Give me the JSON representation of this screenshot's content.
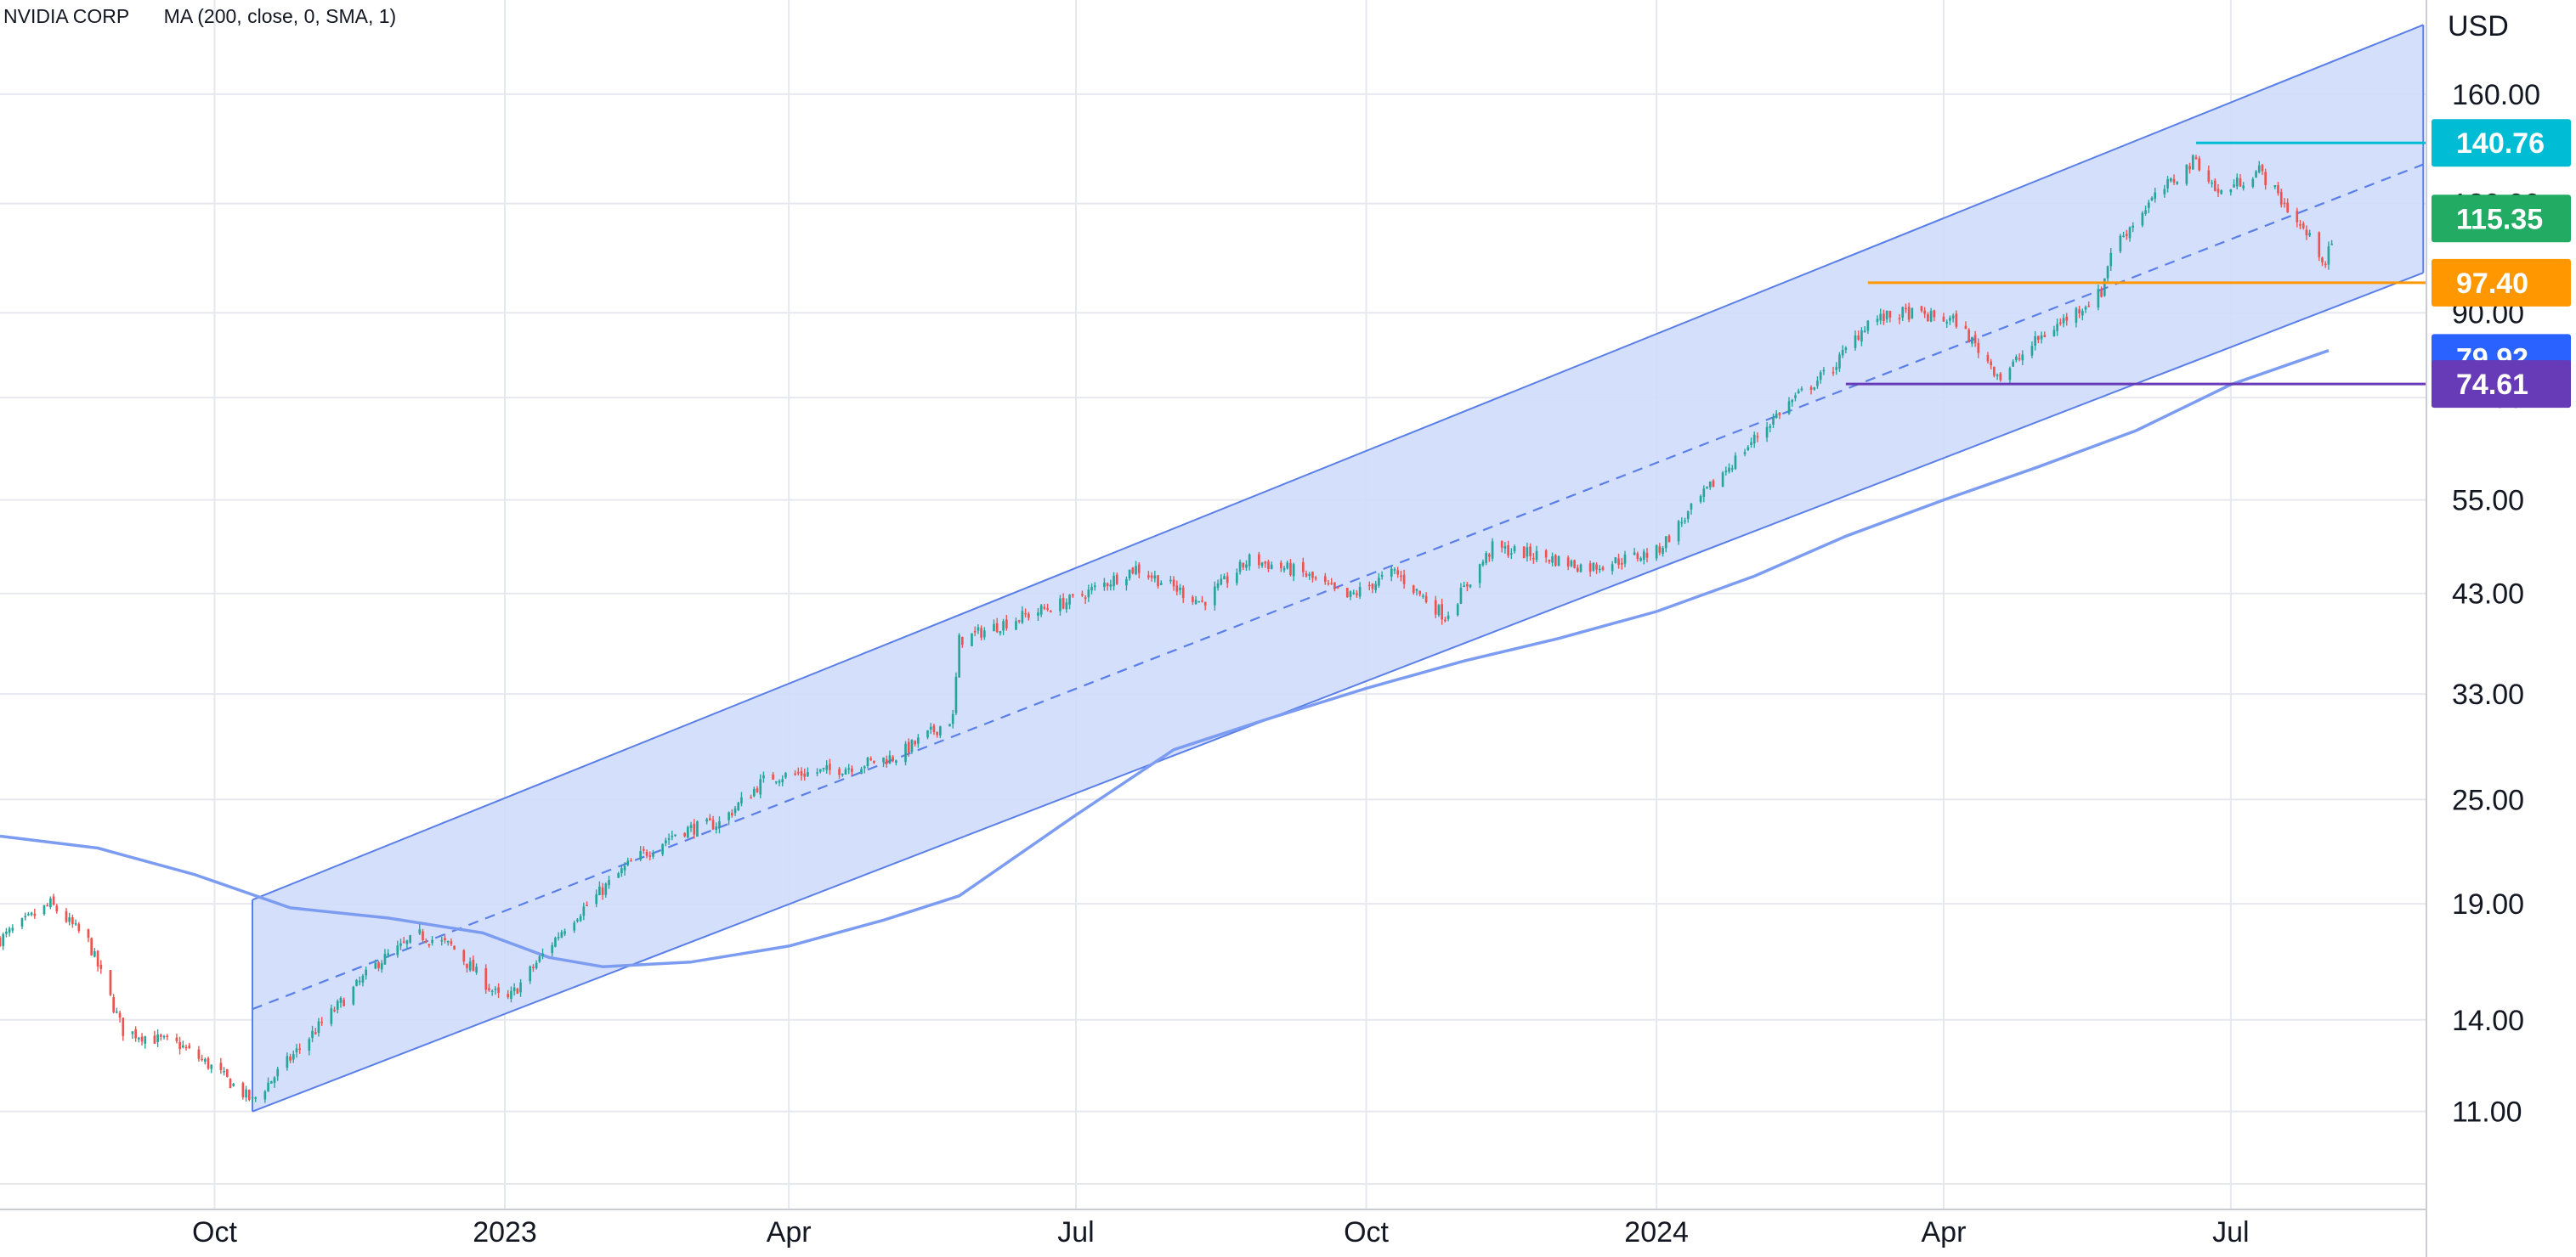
{
  "legend": {
    "symbol": "NVIDIA CORP",
    "indicator": "MA (200, close, 0, SMA, 1)"
  },
  "chart_data": {
    "type": "candlestick",
    "symbol": "NVIDIA CORP",
    "currency": "USD",
    "y_scale": "log",
    "ylim": [
      8.5,
      205
    ],
    "xlim": [
      "2022-07-25",
      "2024-09-01"
    ],
    "grid": true,
    "x_ticks": [
      {
        "date": "2022-10-01",
        "label": "Oct"
      },
      {
        "date": "2023-01-01",
        "label": "2023"
      },
      {
        "date": "2023-04-01",
        "label": "Apr"
      },
      {
        "date": "2023-07-01",
        "label": "Jul"
      },
      {
        "date": "2023-10-01",
        "label": "Oct"
      },
      {
        "date": "2024-01-01",
        "label": "2024"
      },
      {
        "date": "2024-04-01",
        "label": "Apr"
      },
      {
        "date": "2024-07-01",
        "label": "Jul"
      }
    ],
    "y_ticks": [
      {
        "value": 160,
        "label": "160.00"
      },
      {
        "value": 120,
        "label": "120.00"
      },
      {
        "value": 90,
        "label": "90.00"
      },
      {
        "value": 72,
        "label": "72.00"
      },
      {
        "value": 55,
        "label": "55.00"
      },
      {
        "value": 43,
        "label": "43.00"
      },
      {
        "value": 33,
        "label": "33.00"
      },
      {
        "value": 25,
        "label": "25.00"
      },
      {
        "value": 19,
        "label": "19.00"
      },
      {
        "value": 14,
        "label": "14.00"
      },
      {
        "value": 11,
        "label": "11.00"
      }
    ],
    "price_anchors": [
      [
        "2022-07-25",
        17.3
      ],
      [
        "2022-08-10",
        19.0
      ],
      [
        "2022-08-22",
        17.2
      ],
      [
        "2022-09-02",
        13.6
      ],
      [
        "2022-09-20",
        13.1
      ],
      [
        "2022-10-01",
        12.3
      ],
      [
        "2022-10-13",
        11.3
      ],
      [
        "2022-11-01",
        13.5
      ],
      [
        "2022-11-22",
        16.3
      ],
      [
        "2022-12-05",
        17.5
      ],
      [
        "2022-12-15",
        17.0
      ],
      [
        "2023-01-01",
        14.6
      ],
      [
        "2023-01-20",
        17.9
      ],
      [
        "2023-02-10",
        21.2
      ],
      [
        "2023-02-25",
        23.0
      ],
      [
        "2023-03-10",
        23.5
      ],
      [
        "2023-03-25",
        26.5
      ],
      [
        "2023-04-15",
        27.0
      ],
      [
        "2023-05-05",
        28.0
      ],
      [
        "2023-05-23",
        31.0
      ],
      [
        "2023-05-25",
        38.0
      ],
      [
        "2023-06-10",
        40.0
      ],
      [
        "2023-06-30",
        42.3
      ],
      [
        "2023-07-20",
        46.0
      ],
      [
        "2023-08-10",
        42.0
      ],
      [
        "2023-08-25",
        47.0
      ],
      [
        "2023-09-10",
        45.5
      ],
      [
        "2023-09-25",
        42.5
      ],
      [
        "2023-10-10",
        45.5
      ],
      [
        "2023-10-26",
        40.5
      ],
      [
        "2023-11-10",
        48.5
      ],
      [
        "2023-11-25",
        47.5
      ],
      [
        "2023-12-10",
        46.0
      ],
      [
        "2024-01-01",
        48.0
      ],
      [
        "2024-01-20",
        58.0
      ],
      [
        "2024-02-10",
        70.0
      ],
      [
        "2024-02-26",
        78.0
      ],
      [
        "2024-03-08",
        88.0
      ],
      [
        "2024-03-20",
        90.0
      ],
      [
        "2024-04-05",
        88.0
      ],
      [
        "2024-04-19",
        76.0
      ],
      [
        "2024-05-01",
        84.0
      ],
      [
        "2024-05-21",
        95.0
      ],
      [
        "2024-05-24",
        106.0
      ],
      [
        "2024-06-05",
        120.0
      ],
      [
        "2024-06-20",
        135.0
      ],
      [
        "2024-06-27",
        123.0
      ],
      [
        "2024-07-10",
        131.0
      ],
      [
        "2024-07-24",
        112.0
      ],
      [
        "2024-07-31",
        103.0
      ],
      [
        "2024-08-02",
        108.0
      ]
    ],
    "ma_200": [
      [
        "2022-07-25",
        22.7
      ],
      [
        "2022-08-25",
        22.0
      ],
      [
        "2022-09-25",
        20.5
      ],
      [
        "2022-10-25",
        18.8
      ],
      [
        "2022-11-25",
        18.3
      ],
      [
        "2022-12-25",
        17.6
      ],
      [
        "2023-01-15",
        16.5
      ],
      [
        "2023-02-01",
        16.1
      ],
      [
        "2023-03-01",
        16.3
      ],
      [
        "2023-04-01",
        17.0
      ],
      [
        "2023-05-01",
        18.2
      ],
      [
        "2023-05-25",
        19.4
      ],
      [
        "2023-07-01",
        24.0
      ],
      [
        "2023-08-01",
        28.5
      ],
      [
        "2023-09-01",
        31.0
      ],
      [
        "2023-10-01",
        33.5
      ],
      [
        "2023-11-01",
        36.0
      ],
      [
        "2023-12-01",
        38.2
      ],
      [
        "2024-01-01",
        41.0
      ],
      [
        "2024-02-01",
        45.0
      ],
      [
        "2024-03-01",
        50.0
      ],
      [
        "2024-04-01",
        55.0
      ],
      [
        "2024-05-01",
        60.0
      ],
      [
        "2024-06-01",
        66.0
      ],
      [
        "2024-07-01",
        74.5
      ],
      [
        "2024-08-01",
        81.5
      ]
    ],
    "regression_channel": {
      "start": "2022-10-13",
      "end": "2024-08-31",
      "upper": [
        19.2,
        192.0
      ],
      "middle": [
        14.4,
        133.0
      ],
      "lower": [
        11.0,
        100.0
      ]
    },
    "horizontal_lines": [
      {
        "label": "140.76",
        "value": 140.76,
        "start": "2024-06-20",
        "color": "#00bcd4"
      },
      {
        "label": "97.40",
        "value": 97.4,
        "start": "2024-03-08",
        "color": "#ff9800"
      },
      {
        "label": "74.61",
        "value": 74.61,
        "start": "2024-03-01",
        "color": "#673ab7"
      }
    ],
    "price_labels": [
      {
        "label": "140.76",
        "value": 140.76,
        "color": "#00bcd4"
      },
      {
        "label": "115.35",
        "value": 115.35,
        "color": "#22ab63"
      },
      {
        "label": "97.40",
        "value": 97.4,
        "color": "#ff9800"
      },
      {
        "label": "79.92",
        "value": 79.92,
        "color": "#2962ff"
      },
      {
        "label": "74.61",
        "value": 74.61,
        "color": "#673ab7"
      }
    ]
  },
  "colors": {
    "up": "#26a69a",
    "down": "#ef5350",
    "ma": "#7b9cf0",
    "channel_fill": "#cfdcfb",
    "channel_line": "#5a7fe8",
    "grid": "#e6e8ee"
  }
}
